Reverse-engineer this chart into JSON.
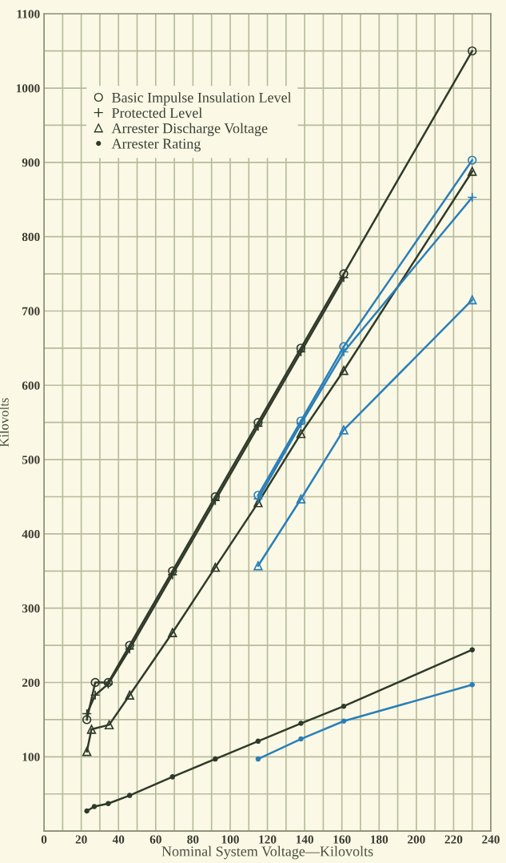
{
  "chart_data": {
    "type": "line",
    "xlabel": "Nominal System Voltage—Kilovolts",
    "ylabel": "Kilovolts",
    "xlim": [
      0,
      240
    ],
    "ylim": [
      0,
      1100
    ],
    "xticks": [
      0,
      {
        "value": 10,
        "label": null
      },
      20,
      {
        "value": 30,
        "label": null
      },
      40,
      {
        "value": 50,
        "label": null
      },
      60,
      {
        "value": 70,
        "label": null
      },
      80,
      {
        "value": 90,
        "label": null
      },
      100,
      {
        "value": 110,
        "label": null
      },
      120,
      {
        "value": 130,
        "label": null
      },
      140,
      {
        "value": 150,
        "label": null
      },
      160,
      {
        "value": 170,
        "label": null
      },
      180,
      {
        "value": 190,
        "label": null
      },
      200,
      {
        "value": 210,
        "label": null
      },
      220,
      {
        "value": 230,
        "label": null
      },
      240
    ],
    "yticks": [
      {
        "value": 0,
        "label": null
      },
      {
        "value": 50,
        "label": null
      },
      100,
      {
        "value": 150,
        "label": null
      },
      200,
      {
        "value": 250,
        "label": null
      },
      300,
      {
        "value": 350,
        "label": null
      },
      400,
      {
        "value": 450,
        "label": null
      },
      500,
      {
        "value": 550,
        "label": null
      },
      600,
      {
        "value": 650,
        "label": null
      },
      700,
      {
        "value": 750,
        "label": null
      },
      800,
      {
        "value": 850,
        "label": null
      },
      900,
      {
        "value": 950,
        "label": null
      },
      1000,
      {
        "value": 1050,
        "label": null
      },
      1100
    ],
    "grid": true,
    "legend": "top left",
    "line_style": "solid",
    "series": [
      {
        "name": "Basic Impulse Insulation Level",
        "marker": "circle",
        "color": "#2f3a2a",
        "x": [
          23,
          27.5,
          34.5,
          46,
          69,
          92,
          115,
          138,
          161,
          230
        ],
        "values": [
          150,
          200,
          200,
          250,
          350,
          450,
          550,
          650,
          750,
          1050
        ]
      },
      {
        "name": "Protected Level",
        "marker": "cross",
        "color": "#2f3a2a",
        "x": [
          23,
          27.5,
          34.5,
          46,
          69,
          92,
          115,
          138,
          161
        ],
        "values": [
          158,
          183,
          198,
          245,
          345,
          445,
          545,
          645,
          745
        ]
      },
      {
        "name": "Arrester Discharge Voltage",
        "marker": "triangle",
        "color": "#2f3a2a",
        "x": [
          23,
          25.5,
          35,
          46,
          69,
          92,
          115,
          138,
          161,
          230
        ],
        "values": [
          107,
          137,
          143,
          183,
          267,
          355,
          442,
          535,
          620,
          888
        ]
      },
      {
        "name": "Arrester Rating",
        "marker": "dot",
        "color": "#2f3a2a",
        "x": [
          23,
          27,
          34.5,
          46,
          69,
          92,
          115,
          138,
          161,
          230
        ],
        "values": [
          27,
          33,
          37,
          48,
          73,
          97,
          121,
          145,
          168,
          244
        ]
      },
      {
        "marker": "circle",
        "color": "#2a7fb8",
        "x": [
          115,
          138,
          161,
          230
        ],
        "values": [
          452,
          552,
          652,
          903
        ]
      },
      {
        "marker": "cross",
        "color": "#2a7fb8",
        "x": [
          115,
          138,
          161,
          230
        ],
        "values": [
          447,
          548,
          645,
          853
        ]
      },
      {
        "marker": "triangle",
        "color": "#2a7fb8",
        "x": [
          115,
          138,
          161,
          230
        ],
        "values": [
          357,
          447,
          540,
          715
        ]
      },
      {
        "marker": "dot",
        "color": "#2a7fb8",
        "x": [
          115,
          138,
          161,
          230
        ],
        "values": [
          97,
          124,
          148,
          197
        ]
      }
    ]
  }
}
